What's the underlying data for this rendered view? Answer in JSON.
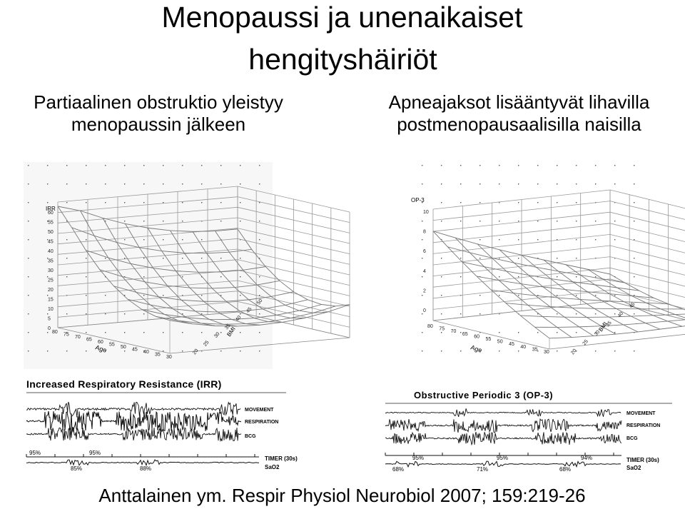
{
  "title": {
    "line1": "Menopaussi ja unenaikaiset",
    "line2": "hengityshäiriöt"
  },
  "left": {
    "caption_line1": "Partiaalinen obstruktio yleistyy",
    "caption_line2": "menopaussin jälkeen",
    "plot": {
      "z_label": "IRR",
      "z_ticks": [
        "60",
        "55",
        "50",
        "45",
        "40",
        "35",
        "30",
        "25",
        "20",
        "15",
        "10",
        "5",
        "0"
      ],
      "age_label": "Age",
      "age_ticks": [
        "80",
        "75",
        "70",
        "65",
        "60",
        "55",
        "50",
        "45",
        "40",
        "35",
        "30"
      ],
      "bmi_label": "BMI",
      "bmi_ticks": [
        "20",
        "25",
        "30",
        "35",
        "40",
        "45",
        "50"
      ]
    },
    "trace": {
      "title": "Increased Respiratory Resistance (IRR)",
      "channels": [
        "MOVEMENT",
        "RESPIRATION",
        "BCG"
      ],
      "timer": "TIMER (30s)",
      "sao2": "SaO2",
      "sao2_top": [
        "95%",
        "95%"
      ],
      "sao2_bottom": [
        "85%",
        "88%"
      ]
    }
  },
  "right": {
    "caption_line1": "Apneajaksot lisääntyvät lihavilla",
    "caption_line2": "postmenopausaalisilla naisilla",
    "plot": {
      "z_label": "OP-3",
      "z_ticks": [
        "10",
        "8",
        "6",
        "4",
        "2",
        "0"
      ],
      "age_label": "Age",
      "age_ticks": [
        "80",
        "75",
        "70",
        "65",
        "60",
        "55",
        "50",
        "45",
        "40",
        "35",
        "30"
      ],
      "bmi_label": "BMI",
      "bmi_ticks": [
        "20",
        "25",
        "30",
        "35",
        "40",
        "45"
      ]
    },
    "trace": {
      "title": "Obstructive Periodic 3 (OP-3)",
      "channels": [
        "MOVEMENT",
        "RESPIRATION",
        "BCG"
      ],
      "timer": "TIMER (30s)",
      "sao2": "SaO2",
      "sao2_top": [
        "95%",
        "95%",
        "94%"
      ],
      "sao2_bottom": [
        "68%",
        "71%",
        "68%"
      ]
    }
  },
  "citation": "Anttalainen ym. Respir Physiol Neurobiol 2007; 159:219-26"
}
